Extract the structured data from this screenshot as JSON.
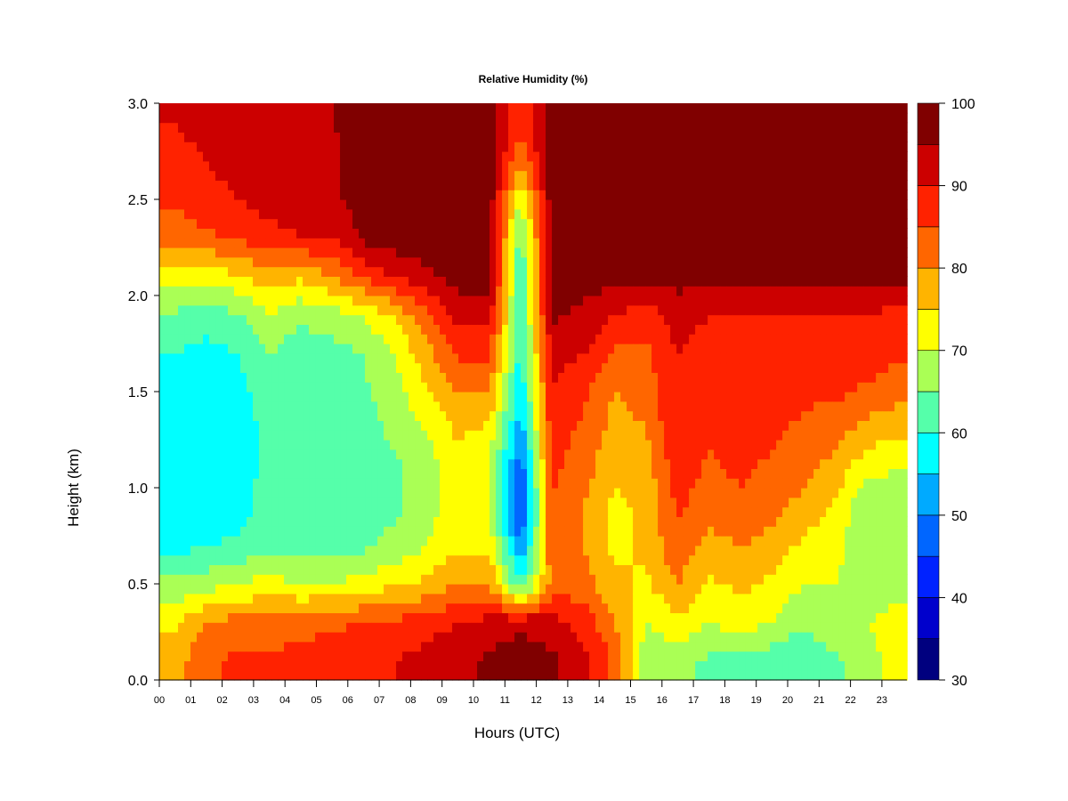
{
  "chart_data": {
    "type": "heatmap",
    "title": "Relative Humidity (%)",
    "xlabel": "Hours (UTC)",
    "ylabel": "Height (km)",
    "xlim": [
      0,
      23.8
    ],
    "ylim": [
      0,
      3.0
    ],
    "x_tick_labels": [
      "00",
      "01",
      "02",
      "03",
      "04",
      "05",
      "06",
      "07",
      "08",
      "09",
      "10",
      "11",
      "12",
      "13",
      "14",
      "15",
      "16",
      "17",
      "18",
      "19",
      "20",
      "21",
      "22",
      "23"
    ],
    "y_tick_labels": [
      "0.0",
      "0.5",
      "1.0",
      "1.5",
      "2.0",
      "2.5",
      "3.0"
    ],
    "colorbar": {
      "levels": [
        30,
        35,
        40,
        45,
        50,
        55,
        60,
        65,
        70,
        75,
        80,
        85,
        90,
        95,
        100
      ],
      "tick_labels": [
        "30",
        "40",
        "50",
        "60",
        "70",
        "80",
        "90",
        "100"
      ],
      "colors": [
        "#00007F",
        "#0000CC",
        "#0022FF",
        "#0066FF",
        "#00AAFF",
        "#00FFFF",
        "#55FFAA",
        "#AAFF55",
        "#FFFF00",
        "#FFB400",
        "#FF6600",
        "#FF2200",
        "#CC0000",
        "#800000"
      ]
    },
    "heights_km": [
      0.1,
      0.3,
      0.5,
      0.7,
      0.9,
      1.1,
      1.3,
      1.5,
      1.7,
      1.9,
      2.1,
      2.3,
      2.5,
      2.7,
      2.9
    ],
    "hours": [
      0,
      1,
      2,
      3,
      4,
      5,
      6,
      7,
      8,
      9,
      10,
      11,
      12,
      13,
      14,
      15,
      16,
      17,
      18,
      19,
      20,
      21,
      22,
      23
    ],
    "values": [
      [
        78,
        74,
        66,
        58,
        57,
        56,
        57,
        58,
        60,
        64,
        72,
        82,
        86,
        88,
        90
      ],
      [
        84,
        80,
        68,
        60,
        56,
        55,
        55,
        56,
        58,
        63,
        72,
        84,
        88,
        90,
        92
      ],
      [
        86,
        82,
        70,
        61,
        58,
        57,
        57,
        58,
        60,
        64,
        74,
        86,
        90,
        92,
        92
      ],
      [
        86,
        82,
        72,
        64,
        62,
        62,
        62,
        63,
        65,
        70,
        78,
        88,
        92,
        92,
        93
      ],
      [
        87,
        83,
        70,
        62,
        60,
        60,
        60,
        61,
        62,
        66,
        76,
        90,
        93,
        94,
        94
      ],
      [
        88,
        84,
        70,
        63,
        61,
        61,
        61,
        62,
        63,
        68,
        80,
        90,
        94,
        94,
        95
      ],
      [
        89,
        85,
        72,
        64,
        62,
        62,
        63,
        64,
        65,
        70,
        86,
        96,
        97,
        97,
        97
      ],
      [
        90,
        86,
        74,
        67,
        64,
        64,
        66,
        68,
        70,
        76,
        90,
        98,
        98,
        98,
        98
      ],
      [
        92,
        88,
        76,
        70,
        68,
        68,
        70,
        74,
        78,
        84,
        94,
        98,
        98,
        98,
        98
      ],
      [
        93,
        90,
        80,
        74,
        72,
        73,
        76,
        80,
        86,
        92,
        97,
        98,
        98,
        98,
        98
      ],
      [
        96,
        92,
        80,
        74,
        70,
        70,
        74,
        80,
        86,
        92,
        97,
        98,
        98,
        98,
        98
      ],
      [
        98,
        94,
        60,
        50,
        42,
        46,
        52,
        56,
        58,
        60,
        60,
        62,
        70,
        80,
        86
      ],
      [
        96,
        92,
        82,
        84,
        85,
        86,
        88,
        90,
        92,
        96,
        98,
        98,
        98,
        98,
        98
      ],
      [
        92,
        88,
        82,
        80,
        80,
        82,
        84,
        86,
        90,
        94,
        97,
        98,
        98,
        98,
        98
      ],
      [
        84,
        80,
        76,
        74,
        74,
        76,
        78,
        80,
        84,
        90,
        97,
        98,
        98,
        98,
        98
      ],
      [
        66,
        70,
        74,
        76,
        76,
        78,
        80,
        82,
        84,
        88,
        96,
        98,
        98,
        98,
        98
      ],
      [
        66,
        74,
        80,
        84,
        86,
        88,
        90,
        90,
        90,
        92,
        97,
        98,
        98,
        98,
        98
      ],
      [
        64,
        70,
        74,
        78,
        82,
        84,
        86,
        88,
        88,
        90,
        97,
        98,
        98,
        98,
        98
      ],
      [
        64,
        72,
        76,
        80,
        84,
        86,
        88,
        88,
        88,
        90,
        97,
        98,
        98,
        98,
        98
      ],
      [
        62,
        70,
        74,
        78,
        82,
        84,
        86,
        88,
        88,
        90,
        97,
        98,
        98,
        98,
        98
      ],
      [
        60,
        66,
        70,
        74,
        78,
        82,
        84,
        86,
        88,
        90,
        97,
        98,
        98,
        98,
        98
      ],
      [
        64,
        70,
        70,
        72,
        74,
        78,
        82,
        86,
        88,
        90,
        97,
        98,
        98,
        98,
        98
      ],
      [
        68,
        70,
        66,
        66,
        66,
        72,
        78,
        84,
        88,
        90,
        97,
        98,
        98,
        98,
        98
      ],
      [
        72,
        72,
        68,
        66,
        66,
        70,
        76,
        82,
        86,
        88,
        96,
        98,
        98,
        98,
        98
      ]
    ]
  }
}
